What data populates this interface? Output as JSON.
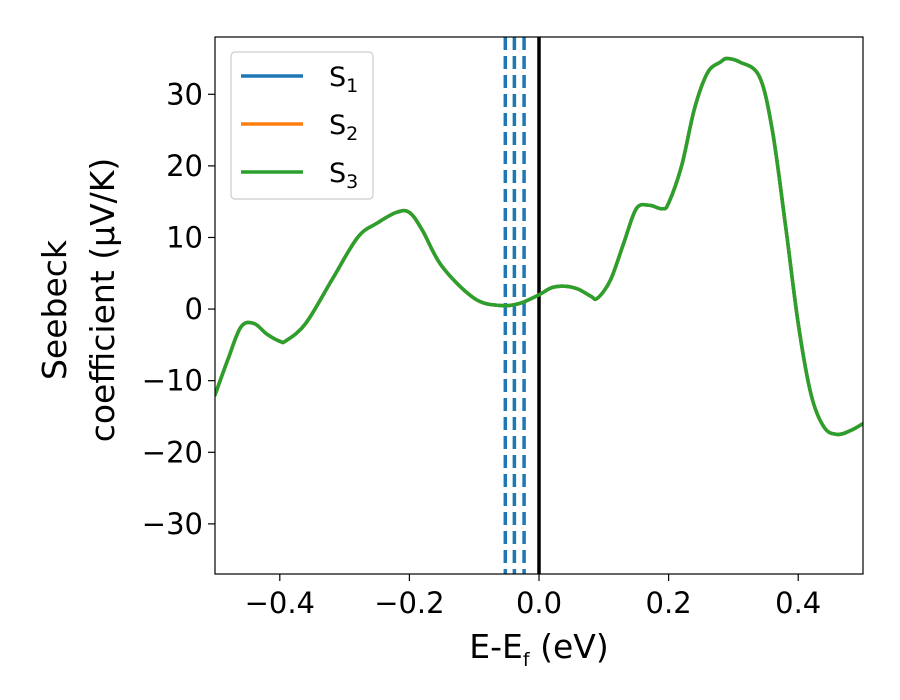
{
  "chart_data": {
    "type": "line",
    "title": "",
    "xlabel_main": "E-E",
    "xlabel_sub": "f",
    "xlabel_rest": " (eV)",
    "ylabel_line1": "Seebeck",
    "ylabel_line2": "coefficient  (μV/K)",
    "xlim": [
      -0.5,
      0.5
    ],
    "ylim": [
      -37,
      38
    ],
    "xticks": [
      -0.4,
      -0.2,
      0.0,
      0.2,
      0.4
    ],
    "xtick_labels": [
      "−0.4",
      "−0.2",
      "0.0",
      "0.2",
      "0.4"
    ],
    "yticks": [
      -30,
      -20,
      -10,
      0,
      10,
      20,
      30
    ],
    "ytick_labels": [
      "−30",
      "−20",
      "−10",
      "0",
      "10",
      "20",
      "30"
    ],
    "grid": false,
    "legend_position": "top-left",
    "series": [
      {
        "name_main": "S",
        "name_sub": "1",
        "color": "#1f77b4"
      },
      {
        "name_main": "S",
        "name_sub": "2",
        "color": "#ff7f0e"
      },
      {
        "name_main": "S",
        "name_sub": "3",
        "color": "#2ca02c"
      }
    ],
    "curve": {
      "x": [
        -0.5,
        -0.48,
        -0.46,
        -0.44,
        -0.42,
        -0.4,
        -0.39,
        -0.36,
        -0.32,
        -0.28,
        -0.25,
        -0.22,
        -0.2,
        -0.18,
        -0.15,
        -0.1,
        -0.06,
        -0.03,
        0.0,
        0.02,
        0.04,
        0.06,
        0.08,
        0.09,
        0.11,
        0.13,
        0.15,
        0.17,
        0.19,
        0.2,
        0.22,
        0.24,
        0.26,
        0.28,
        0.29,
        0.31,
        0.34,
        0.36,
        0.38,
        0.4,
        0.42,
        0.44,
        0.46,
        0.48,
        0.5
      ],
      "y": [
        -12,
        -7,
        -2.5,
        -2,
        -3.5,
        -4.5,
        -4.4,
        -2,
        4,
        10,
        12,
        13.5,
        13.5,
        11,
        6,
        1.5,
        0.5,
        0.8,
        2,
        3,
        3.2,
        2.8,
        1.8,
        1.5,
        4,
        9,
        14,
        14.5,
        14,
        14.8,
        20,
        28,
        33,
        34.5,
        35,
        34.5,
        32.5,
        25,
        12,
        -2,
        -12,
        -16.5,
        -17.5,
        -17,
        -16
      ]
    },
    "reference_lines": {
      "dashed_x": [
        -0.052,
        -0.038,
        -0.023
      ],
      "dashed_color": "#1f77b4",
      "solid_x": 0.0,
      "solid_color": "#000000"
    }
  }
}
